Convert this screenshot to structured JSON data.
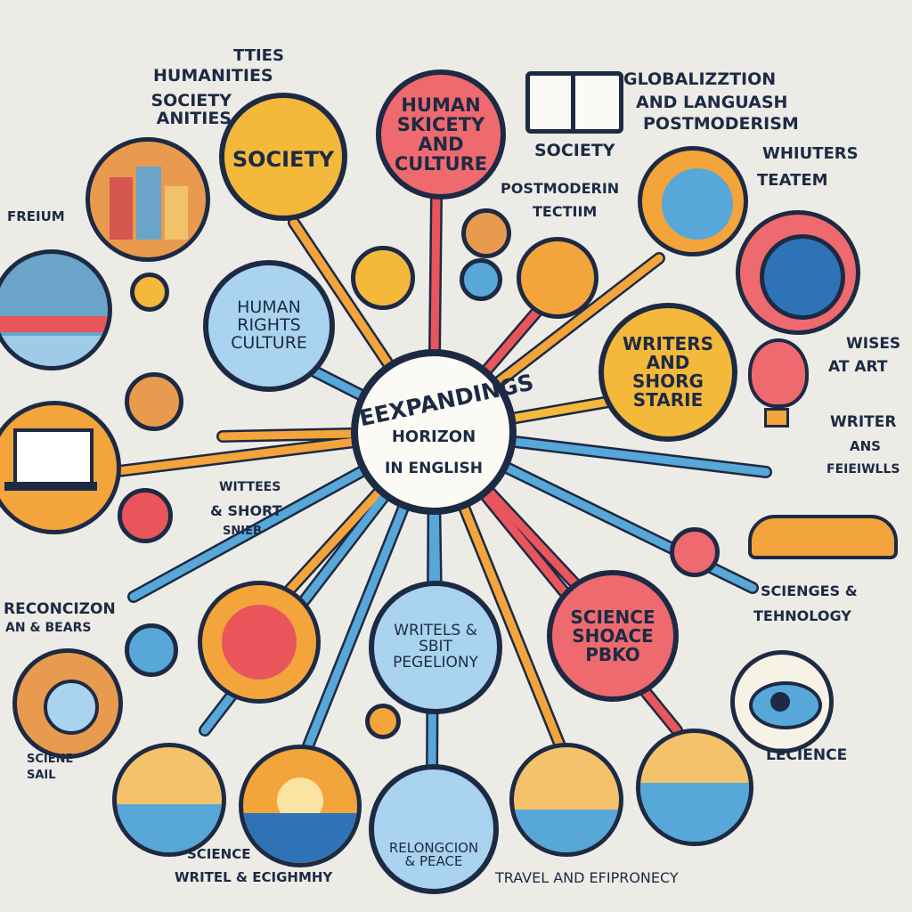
{
  "center": {
    "title": "EEXPANDINGS",
    "sub": "HORIZON",
    "sub2": "IN ENGLISH"
  },
  "nodes": {
    "human_society_culture": "HUMAN SKICETY AND CULTURE",
    "society_top": "SOCIETY",
    "human_rights": "HUMAN RIGHTS CULTURE",
    "writers_short": "WRITERS AND SHORG STARIE",
    "writels": "WRITELS & SBIT PEGELIONY",
    "science": "SCIENCE SHOACE PBKO",
    "relongcion": "RELONGCION & PEACE"
  },
  "labels": {
    "ties": "TTIES",
    "humanities": "HUMANITIES",
    "society_anities": "SOCIETY ANITIES",
    "globalization": "GLOBALIZZTION",
    "language": "AND LANGUASH",
    "postmoderism": "POSTMODERISM",
    "society_mid": "SOCIETY",
    "postmoderin": "POSTMODERIN",
    "tectiim": "TECTIIM",
    "whiuters": "WHIUTERS",
    "teatem": "TEATEM",
    "freium": "FREIUM",
    "wises": "WISES",
    "at_art": "AT ART",
    "writer": "WRITER",
    "ans": "ANS",
    "refeiwlls": "FEIEIWLLS",
    "wittees": "WITTEES",
    "and_short": "& SHORT",
    "snieb": "SNIEB",
    "reconcizon": "RECONCIZON",
    "an_bears": "AN & BEARS",
    "sciences": "SCIENGES &",
    "tehnology": "TEHNOLOGY",
    "lecience": "LECIENCE",
    "science_bottom": "SCIENCE",
    "writel_bottom": "WRITEL & ECIGHMHY",
    "travel": "TRAVEL AND EFIPRONECY",
    "sciene_sail": "SCIENE",
    "sail": "SAIL"
  },
  "colors": {
    "navy": "#1d2a44",
    "red": "#e8555b",
    "orange": "#f3a43a",
    "yellow": "#f4b93b",
    "blue": "#57a7d8",
    "lightblue": "#a9d3ee",
    "background": "#ecebe6"
  }
}
